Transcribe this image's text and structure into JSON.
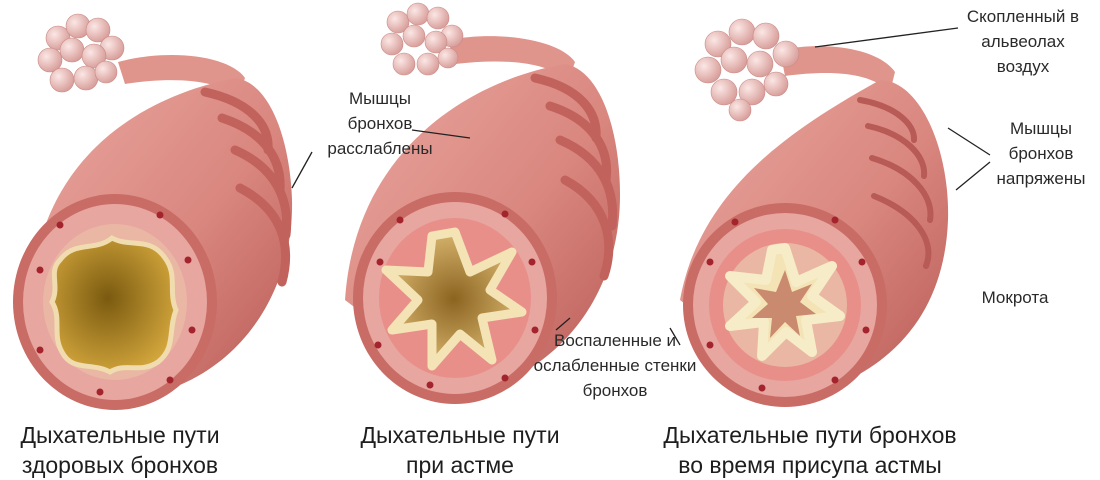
{
  "labels": {
    "muscles_relaxed": [
      "Мышцы",
      "бронхов",
      "расслаблены"
    ],
    "air_trapped": [
      "Скопленный в",
      "альвеолах",
      "воздух"
    ],
    "muscles_tense": [
      "Мышцы",
      "бронхов",
      "напряжены"
    ],
    "mucus": "Мокрота",
    "inflamed_walls": [
      "Воспаленные и",
      "ослабленные стенки",
      "бронхов"
    ]
  },
  "captions": {
    "healthy": [
      "Дыхательные пути",
      "здоровых бронхов"
    ],
    "asthma": [
      "Дыхательные пути",
      "при астме"
    ],
    "attack": [
      "Дыхательные пути бронхов",
      "во время присупа астмы"
    ]
  },
  "colors": {
    "tissue": "#d9877f",
    "tissue_dark": "#b85a55",
    "muscle_band": "#c2625c",
    "tissue_inner": "#e8a6a0",
    "mucosa_ring": "#e9b7a4",
    "lumen_healthy": "#c89a34",
    "lumen_asthma": "#d9b56a",
    "mucus": "#f3e3b5",
    "alveoli": "#eec5c2",
    "vessel": "#a3242d",
    "leader_line": "#222222"
  }
}
